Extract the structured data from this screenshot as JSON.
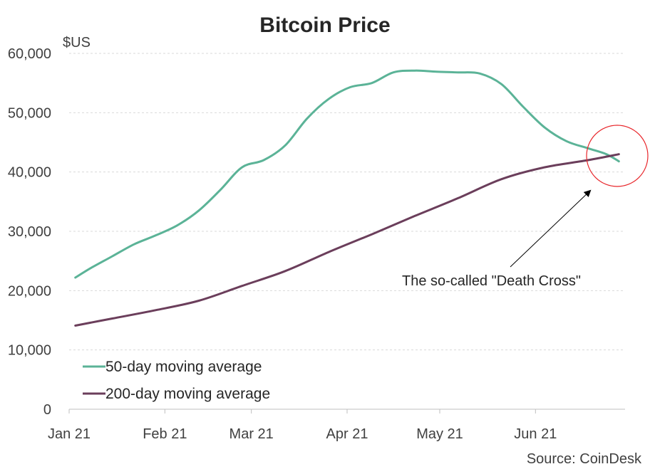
{
  "chart_data": {
    "type": "line",
    "title": "Bitcoin Price",
    "ylabel": "$US",
    "xlabel": "",
    "source": "Source: CoinDesk",
    "ylim": [
      0,
      60000
    ],
    "yticks": [
      0,
      10000,
      20000,
      30000,
      40000,
      50000,
      60000
    ],
    "ytick_labels": [
      "0",
      "10,000",
      "20,000",
      "30,000",
      "40,000",
      "50,000",
      "60,000"
    ],
    "xlim": [
      "2021-01-01",
      "2021-06-30"
    ],
    "xticks": [
      "2021-01-01",
      "2021-02-01",
      "2021-03-01",
      "2021-04-01",
      "2021-05-01",
      "2021-06-01"
    ],
    "xtick_labels": [
      "Jan 21",
      "Feb 21",
      "Mar 21",
      "Apr 21",
      "May 21",
      "Jun 21"
    ],
    "grid": true,
    "legend_position": "bottom-left",
    "series": [
      {
        "name": "50-day moving average",
        "color": "#5BB397",
        "x": [
          "2021-01-03",
          "2021-01-08",
          "2021-01-15",
          "2021-01-22",
          "2021-01-29",
          "2021-02-05",
          "2021-02-12",
          "2021-02-19",
          "2021-02-26",
          "2021-03-05",
          "2021-03-12",
          "2021-03-19",
          "2021-03-26",
          "2021-04-02",
          "2021-04-09",
          "2021-04-16",
          "2021-04-23",
          "2021-04-30",
          "2021-05-07",
          "2021-05-14",
          "2021-05-21",
          "2021-05-28",
          "2021-06-04",
          "2021-06-11",
          "2021-06-18",
          "2021-06-24",
          "2021-06-28"
        ],
        "y": [
          22200,
          23800,
          25800,
          27800,
          29300,
          31000,
          33500,
          37000,
          40800,
          42000,
          44500,
          49000,
          52300,
          54300,
          55000,
          56800,
          57100,
          56900,
          56800,
          56600,
          54800,
          51000,
          47500,
          45200,
          44000,
          43000,
          41800
        ]
      },
      {
        "name": "200-day moving average",
        "color": "#6B3E5B",
        "x": [
          "2021-01-03",
          "2021-01-15",
          "2021-01-29",
          "2021-02-12",
          "2021-02-26",
          "2021-03-12",
          "2021-03-26",
          "2021-04-09",
          "2021-04-23",
          "2021-05-07",
          "2021-05-21",
          "2021-06-04",
          "2021-06-18",
          "2021-06-28"
        ],
        "y": [
          14100,
          15300,
          16700,
          18300,
          20800,
          23300,
          26500,
          29500,
          32600,
          35600,
          38800,
          40800,
          42000,
          43000
        ]
      }
    ],
    "annotations": [
      {
        "text": "The so-called \"Death Cross\"",
        "points_to": {
          "x": "2021-06-23",
          "y": 43000
        }
      }
    ]
  }
}
